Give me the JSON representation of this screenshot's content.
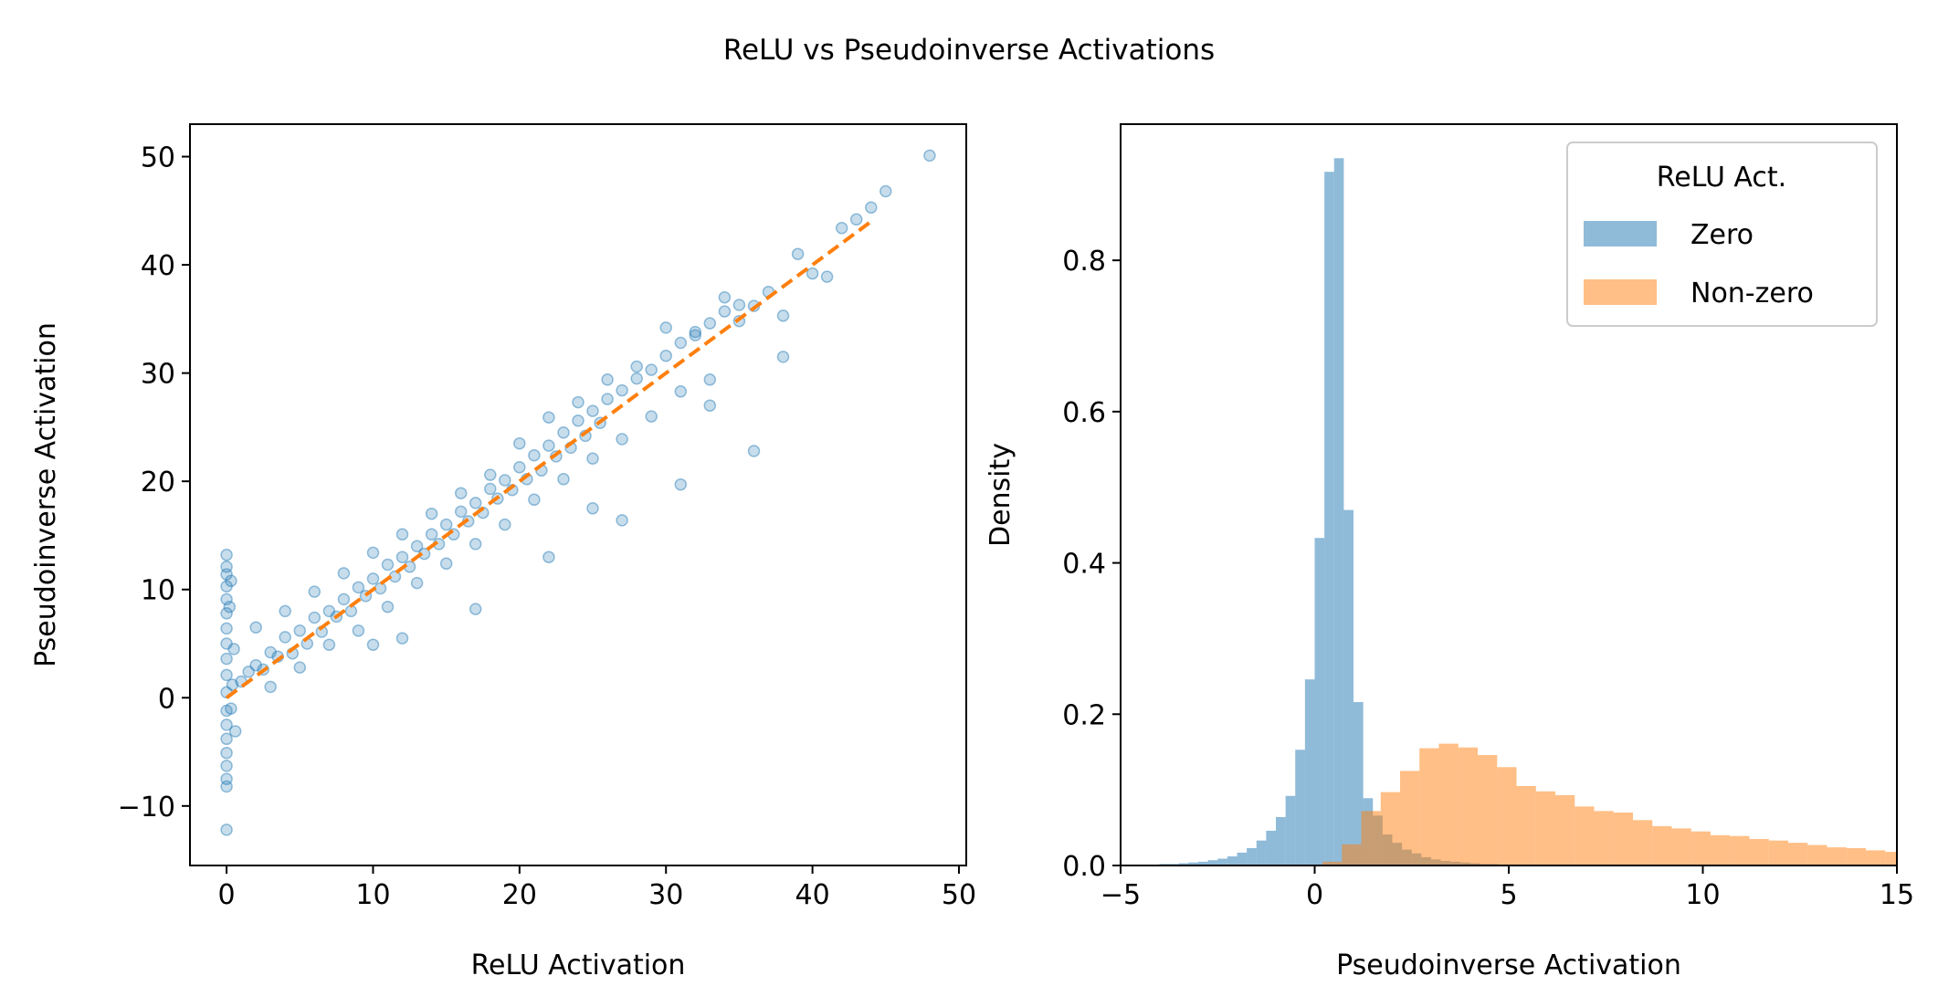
{
  "figure": {
    "title": "ReLU vs Pseudoinverse Activations"
  },
  "chart_data": [
    {
      "type": "scatter",
      "xlabel": "ReLU Activation",
      "ylabel": "Pseudoinverse Activation",
      "xlim": [
        -2.5,
        50.5
      ],
      "ylim": [
        -15.5,
        53
      ],
      "xticks": [
        0,
        10,
        20,
        30,
        40,
        50
      ],
      "yticks": [
        -10,
        0,
        10,
        20,
        30,
        40,
        50
      ],
      "ytick_labels": [
        "−10",
        "0",
        "10",
        "20",
        "30",
        "40",
        "50"
      ],
      "grid": false,
      "series": [
        {
          "kind": "points",
          "color": "#1f77b4",
          "points": [
            [
              0,
              -12.2
            ],
            [
              0,
              -8.2
            ],
            [
              0,
              -7.5
            ],
            [
              0,
              -6.3
            ],
            [
              0,
              -5.1
            ],
            [
              0,
              -3.8
            ],
            [
              0,
              -2.5
            ],
            [
              0,
              -1.2
            ],
            [
              0,
              0.5
            ],
            [
              0,
              2.1
            ],
            [
              0,
              3.6
            ],
            [
              0,
              5.0
            ],
            [
              0,
              6.4
            ],
            [
              0,
              7.8
            ],
            [
              0,
              9.1
            ],
            [
              0,
              10.3
            ],
            [
              0,
              11.4
            ],
            [
              0,
              12.1
            ],
            [
              0,
              13.2
            ],
            [
              0.3,
              -1.0
            ],
            [
              0.4,
              1.2
            ],
            [
              0.5,
              4.5
            ],
            [
              0.6,
              -3.1
            ],
            [
              0.2,
              8.4
            ],
            [
              0.3,
              10.8
            ],
            [
              1,
              1.5
            ],
            [
              1.5,
              2.4
            ],
            [
              2,
              3.0
            ],
            [
              2.5,
              2.6
            ],
            [
              3,
              4.2
            ],
            [
              3.5,
              3.8
            ],
            [
              4,
              5.6
            ],
            [
              4.5,
              4.1
            ],
            [
              5,
              6.2
            ],
            [
              5.5,
              5.0
            ],
            [
              6,
              7.4
            ],
            [
              6.5,
              6.1
            ],
            [
              7,
              8.0
            ],
            [
              7.5,
              7.5
            ],
            [
              8,
              9.1
            ],
            [
              8.5,
              8.0
            ],
            [
              9,
              10.2
            ],
            [
              9.5,
              9.4
            ],
            [
              10,
              11.0
            ],
            [
              10.5,
              10.1
            ],
            [
              11,
              12.3
            ],
            [
              11.5,
              11.2
            ],
            [
              12,
              13.0
            ],
            [
              12.5,
              12.1
            ],
            [
              13,
              14.0
            ],
            [
              13.5,
              13.3
            ],
            [
              14,
              15.1
            ],
            [
              14.5,
              14.2
            ],
            [
              15,
              16.0
            ],
            [
              15.5,
              15.1
            ],
            [
              16,
              17.2
            ],
            [
              16.5,
              16.3
            ],
            [
              17,
              18.0
            ],
            [
              17.5,
              17.1
            ],
            [
              18,
              19.3
            ],
            [
              18.5,
              18.4
            ],
            [
              19,
              20.1
            ],
            [
              19.5,
              19.2
            ],
            [
              20,
              21.3
            ],
            [
              20.5,
              20.2
            ],
            [
              21,
              22.4
            ],
            [
              21.5,
              21.0
            ],
            [
              22,
              23.3
            ],
            [
              22.5,
              22.3
            ],
            [
              23,
              24.5
            ],
            [
              23.5,
              23.1
            ],
            [
              24,
              25.6
            ],
            [
              24.5,
              24.2
            ],
            [
              25,
              26.5
            ],
            [
              25.5,
              25.4
            ],
            [
              26,
              27.6
            ],
            [
              27,
              28.4
            ],
            [
              28,
              29.5
            ],
            [
              29,
              30.3
            ],
            [
              30,
              31.6
            ],
            [
              31,
              32.8
            ],
            [
              32,
              33.5
            ],
            [
              33,
              34.6
            ],
            [
              34,
              35.7
            ],
            [
              35,
              36.3
            ],
            [
              2,
              6.5
            ],
            [
              3,
              1.0
            ],
            [
              4,
              8.0
            ],
            [
              5,
              2.8
            ],
            [
              6,
              9.8
            ],
            [
              7,
              4.9
            ],
            [
              8,
              11.5
            ],
            [
              9,
              6.2
            ],
            [
              10,
              13.4
            ],
            [
              11,
              8.4
            ],
            [
              12,
              15.1
            ],
            [
              13,
              10.6
            ],
            [
              14,
              17.0
            ],
            [
              15,
              12.4
            ],
            [
              16,
              18.9
            ],
            [
              17,
              14.2
            ],
            [
              18,
              20.6
            ],
            [
              19,
              16.0
            ],
            [
              20,
              23.5
            ],
            [
              21,
              18.3
            ],
            [
              22,
              25.9
            ],
            [
              23,
              20.2
            ],
            [
              24,
              27.3
            ],
            [
              25,
              22.1
            ],
            [
              26,
              29.4
            ],
            [
              27,
              23.9
            ],
            [
              28,
              30.6
            ],
            [
              29,
              26.0
            ],
            [
              30,
              34.2
            ],
            [
              31,
              28.3
            ],
            [
              32,
              33.8
            ],
            [
              33,
              29.4
            ],
            [
              34,
              37.0
            ],
            [
              35,
              34.8
            ],
            [
              36,
              36.2
            ],
            [
              37,
              37.5
            ],
            [
              38,
              35.3
            ],
            [
              39,
              41.0
            ],
            [
              40,
              39.2
            ],
            [
              41,
              38.9
            ],
            [
              42,
              43.4
            ],
            [
              43,
              44.2
            ],
            [
              44,
              45.3
            ],
            [
              45,
              46.8
            ],
            [
              48,
              50.1
            ],
            [
              12,
              5.5
            ],
            [
              17,
              8.2
            ],
            [
              22,
              13.0
            ],
            [
              27,
              16.4
            ],
            [
              31,
              19.7
            ],
            [
              36,
              22.8
            ],
            [
              10,
              4.9
            ],
            [
              25,
              17.5
            ],
            [
              33,
              27.0
            ],
            [
              38,
              31.5
            ]
          ]
        },
        {
          "kind": "dashed-line",
          "color": "#ff7f0e",
          "x": [
            0,
            44
          ],
          "y": [
            0,
            44
          ]
        }
      ]
    },
    {
      "type": "histogram",
      "xlabel": "Pseudoinverse Activation",
      "ylabel": "Density",
      "xlim": [
        -5,
        15
      ],
      "ylim": [
        0,
        0.98
      ],
      "xticks": [
        -5,
        0,
        5,
        10,
        15
      ],
      "xtick_labels": [
        "−5",
        "0",
        "5",
        "10",
        "15"
      ],
      "yticks": [
        0.0,
        0.2,
        0.4,
        0.6,
        0.8
      ],
      "ytick_labels": [
        "0.0",
        "0.2",
        "0.4",
        "0.6",
        "0.8"
      ],
      "legend": {
        "title": "ReLU Act.",
        "placement": "upper right",
        "entries": [
          "Zero",
          "Non-zero"
        ]
      },
      "series": [
        {
          "name": "Zero",
          "color": "#1f77b4",
          "alpha": 0.5,
          "bin_start": -4.5,
          "bin_width": 0.25,
          "values": [
            0.001,
            0.001,
            0.002,
            0.002,
            0.003,
            0.004,
            0.005,
            0.007,
            0.009,
            0.012,
            0.017,
            0.023,
            0.033,
            0.046,
            0.064,
            0.092,
            0.153,
            0.246,
            0.433,
            0.917,
            0.935,
            0.47,
            0.216,
            0.089,
            0.066,
            0.041,
            0.03,
            0.021,
            0.016,
            0.011,
            0.008,
            0.006,
            0.005,
            0.004,
            0.003,
            0.002,
            0.002
          ]
        },
        {
          "name": "Non-zero",
          "color": "#ff7f0e",
          "alpha": 0.5,
          "bin_start": 0.2,
          "bin_width": 0.5,
          "values": [
            0.005,
            0.028,
            0.072,
            0.097,
            0.125,
            0.155,
            0.161,
            0.156,
            0.146,
            0.13,
            0.105,
            0.098,
            0.093,
            0.078,
            0.072,
            0.07,
            0.06,
            0.052,
            0.049,
            0.045,
            0.04,
            0.039,
            0.035,
            0.033,
            0.03,
            0.027,
            0.024,
            0.023,
            0.02,
            0.018
          ]
        }
      ]
    }
  ]
}
